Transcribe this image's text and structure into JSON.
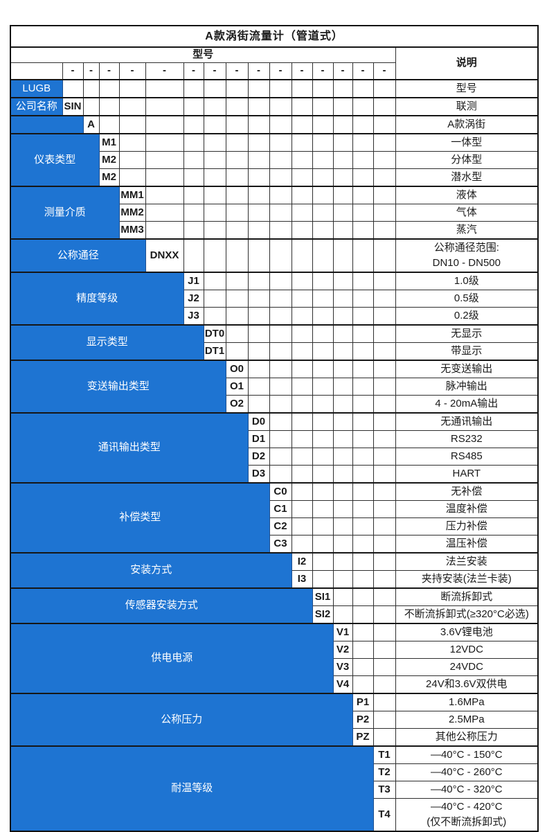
{
  "title": "A款涡街流量计（管道式）",
  "hdr": {
    "model": "型号",
    "desc": "说明",
    "dash": "-"
  },
  "groups": [
    {
      "label": "LUGB",
      "rows": [
        {
          "desc": "型号"
        }
      ]
    },
    {
      "label": "公司名称",
      "rows": [
        {
          "code": "SIN",
          "desc": "联测"
        }
      ]
    },
    {
      "label": "",
      "rows": [
        {
          "code": "A",
          "desc": "A款涡街"
        }
      ]
    },
    {
      "label": "仪表类型",
      "rows": [
        {
          "code": "M1",
          "desc": "一体型"
        },
        {
          "code": "M2",
          "desc": "分体型"
        },
        {
          "code": "M2",
          "desc": "潜水型"
        }
      ]
    },
    {
      "label": "测量介质",
      "rows": [
        {
          "code": "MM1",
          "desc": "液体"
        },
        {
          "code": "MM2",
          "desc": "气体"
        },
        {
          "code": "MM3",
          "desc": "蒸汽"
        }
      ]
    },
    {
      "label": "公称通径",
      "rows": [
        {
          "code": "DNXX",
          "desc": "公称通径范围:",
          "desc2": "DN10 - DN500"
        }
      ]
    },
    {
      "label": "精度等级",
      "rows": [
        {
          "code": "J1",
          "desc": "1.0级"
        },
        {
          "code": "J2",
          "desc": "0.5级"
        },
        {
          "code": "J3",
          "desc": "0.2级"
        }
      ]
    },
    {
      "label": "显示类型",
      "rows": [
        {
          "code": "DT0",
          "desc": "无显示"
        },
        {
          "code": "DT1",
          "desc": "带显示"
        }
      ]
    },
    {
      "label": "变送输出类型",
      "rows": [
        {
          "code": "O0",
          "desc": "无变送输出"
        },
        {
          "code": "O1",
          "desc": "脉冲输出"
        },
        {
          "code": "O2",
          "desc": "4 - 20mA输出"
        }
      ]
    },
    {
      "label": "通讯输出类型",
      "rows": [
        {
          "code": "D0",
          "desc": "无通讯输出"
        },
        {
          "code": "D1",
          "desc": "RS232"
        },
        {
          "code": "D2",
          "desc": "RS485"
        },
        {
          "code": "D3",
          "desc": "HART"
        }
      ]
    },
    {
      "label": "补偿类型",
      "rows": [
        {
          "code": "C0",
          "desc": "无补偿"
        },
        {
          "code": "C1",
          "desc": "温度补偿"
        },
        {
          "code": "C2",
          "desc": "压力补偿"
        },
        {
          "code": "C3",
          "desc": "温压补偿"
        }
      ]
    },
    {
      "label": "安装方式",
      "rows": [
        {
          "code": "I2",
          "desc": "法兰安装"
        },
        {
          "code": "I3",
          "desc": "夹持安装(法兰卡装)"
        }
      ]
    },
    {
      "label": "传感器安装方式",
      "rows": [
        {
          "code": "SI1",
          "desc": "断流拆卸式"
        },
        {
          "code": "SI2",
          "desc": "不断流拆卸式(≥320°C必选)"
        }
      ]
    },
    {
      "label": "供电电源",
      "rows": [
        {
          "code": "V1",
          "desc": "3.6V锂电池"
        },
        {
          "code": "V2",
          "desc": "12VDC"
        },
        {
          "code": "V3",
          "desc": "24VDC"
        },
        {
          "code": "V4",
          "desc": "24V和3.6V双供电"
        }
      ]
    },
    {
      "label": "公称压力",
      "rows": [
        {
          "code": "P1",
          "desc": "1.6MPa"
        },
        {
          "code": "P2",
          "desc": "2.5MPa"
        },
        {
          "code": "PZ",
          "desc": "其他公称压力"
        }
      ]
    },
    {
      "label": "耐温等级",
      "rows": [
        {
          "code": "T1",
          "desc": "—40°C - 150°C"
        },
        {
          "code": "T2",
          "desc": "—40°C - 260°C"
        },
        {
          "code": "T3",
          "desc": "—40°C - 320°C"
        },
        {
          "code": "T4",
          "desc": "—40°C - 420°C",
          "desc2": "(仅不断流拆卸式)"
        }
      ]
    }
  ],
  "colors": {
    "accent_blue": "#1e74d2",
    "border": "#111111",
    "text": "#1a1a1a",
    "cell_text_on_blue": "#ffffff"
  }
}
